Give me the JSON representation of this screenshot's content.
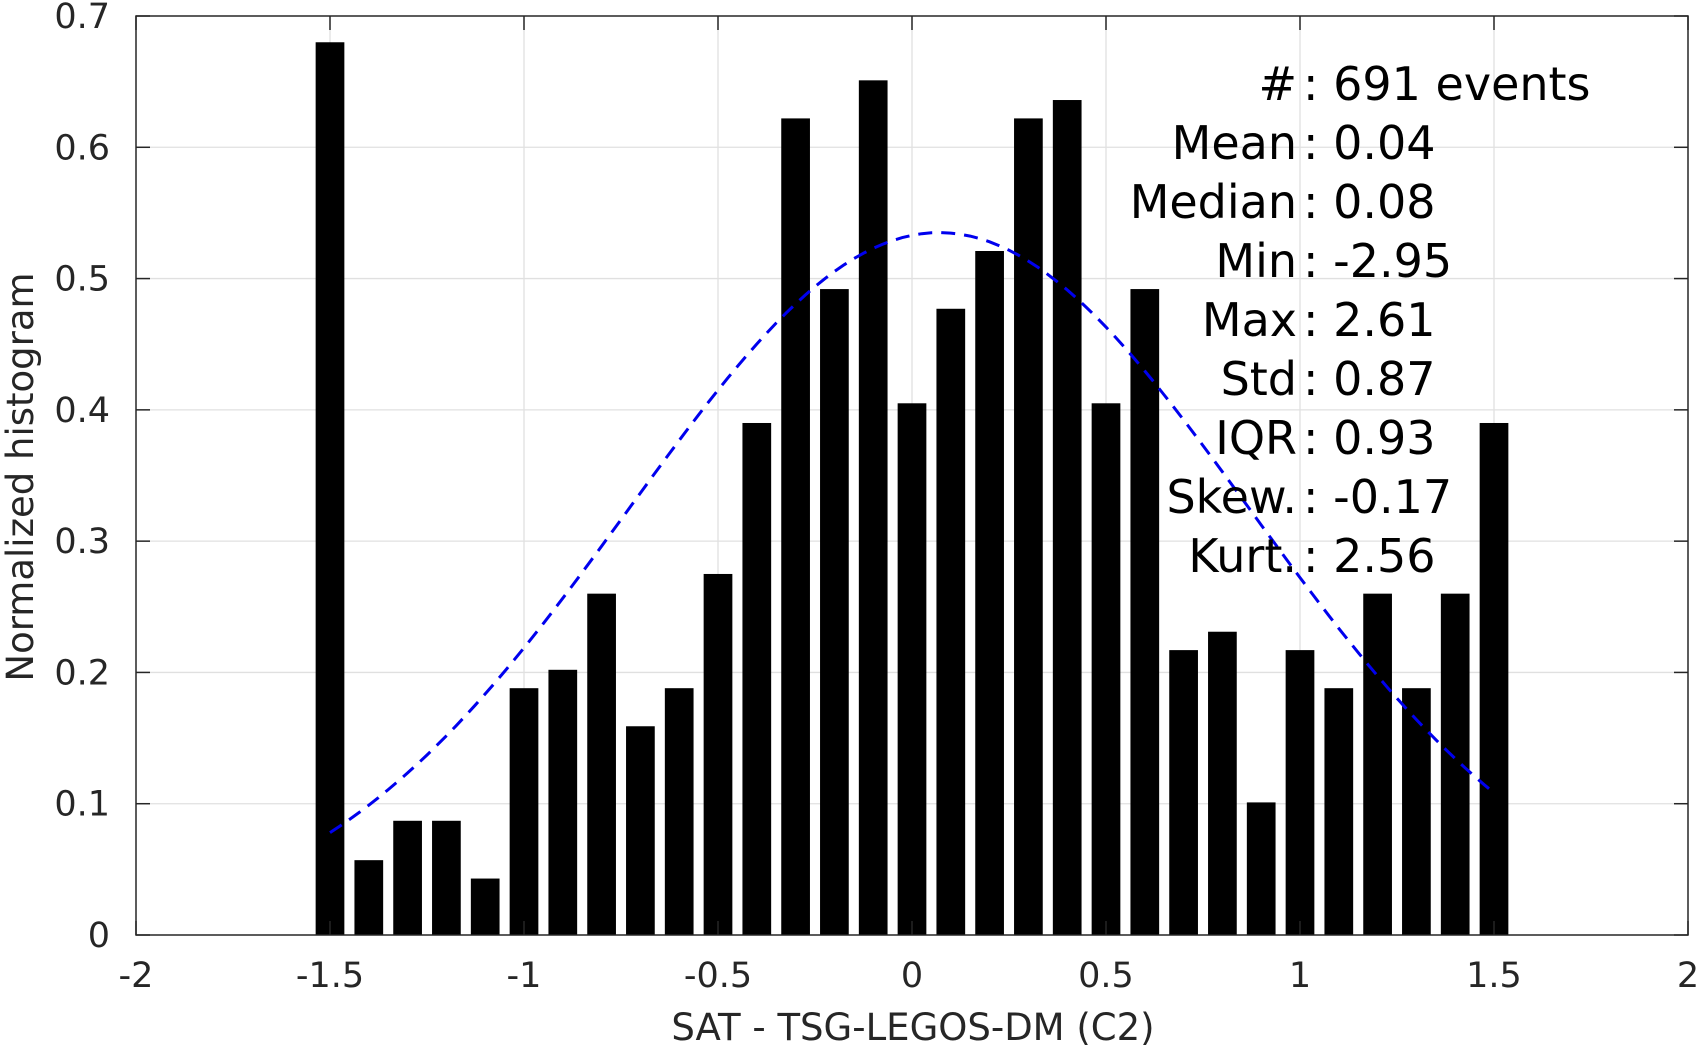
{
  "chart_data": {
    "type": "bar",
    "xlabel": "SAT - TSG-LEGOS-DM (C2)",
    "ylabel": "Normalized histogram",
    "xlim": [
      -2,
      2
    ],
    "ylim": [
      0,
      0.7
    ],
    "xticks": [
      -2,
      -1.5,
      -1,
      -0.5,
      0,
      0.5,
      1,
      1.5,
      2
    ],
    "xtick_labels": [
      "-2",
      "-1.5",
      "-1",
      "-0.5",
      "0",
      "0.5",
      "1",
      "1.5",
      "2"
    ],
    "yticks": [
      0,
      0.1,
      0.2,
      0.3,
      0.4,
      0.5,
      0.6,
      0.7
    ],
    "ytick_labels": [
      "0",
      "0.1",
      "0.2",
      "0.3",
      "0.4",
      "0.5",
      "0.6",
      "0.7"
    ],
    "grid": true,
    "bar_color": "#000000",
    "fit_color": "#0000ee",
    "x": [
      -1.5,
      -1.4,
      -1.3,
      -1.2,
      -1.1,
      -1.0,
      -0.9,
      -0.8,
      -0.7,
      -0.6,
      -0.5,
      -0.4,
      -0.3,
      -0.2,
      -0.1,
      0.0,
      0.1,
      0.2,
      0.3,
      0.4,
      0.5,
      0.6,
      0.7,
      0.8,
      0.9,
      1.0,
      1.1,
      1.2,
      1.3,
      1.4,
      1.5
    ],
    "values": [
      0.68,
      0.057,
      0.087,
      0.087,
      0.043,
      0.188,
      0.202,
      0.26,
      0.159,
      0.188,
      0.275,
      0.39,
      0.622,
      0.492,
      0.651,
      0.405,
      0.477,
      0.521,
      0.622,
      0.636,
      0.405,
      0.492,
      0.217,
      0.231,
      0.101,
      0.217,
      0.188,
      0.26,
      0.188,
      0.26,
      0.39
    ],
    "fit": {
      "style": "dashed",
      "x_range": [
        -1.5,
        1.5
      ],
      "mean": 0.07,
      "std": 0.8,
      "peak": 0.535
    },
    "stats": [
      {
        "label": "#",
        "sep": " : ",
        "value": "691 events"
      },
      {
        "label": "Mean",
        "sep": " : ",
        "value": "0.04"
      },
      {
        "label": "Median",
        "sep": " : ",
        "value": "0.08"
      },
      {
        "label": "Min",
        "sep": " : ",
        "value": "-2.95"
      },
      {
        "label": "Max",
        "sep": " : ",
        "value": "2.61"
      },
      {
        "label": "Std",
        "sep": " : ",
        "value": "0.87"
      },
      {
        "label": "IQR",
        "sep": " : ",
        "value": "0.93"
      },
      {
        "label": "Skew.",
        "sep": " : ",
        "value": "-0.17"
      },
      {
        "label": "Kurt.",
        "sep": " : ",
        "value": "2.56"
      }
    ]
  }
}
